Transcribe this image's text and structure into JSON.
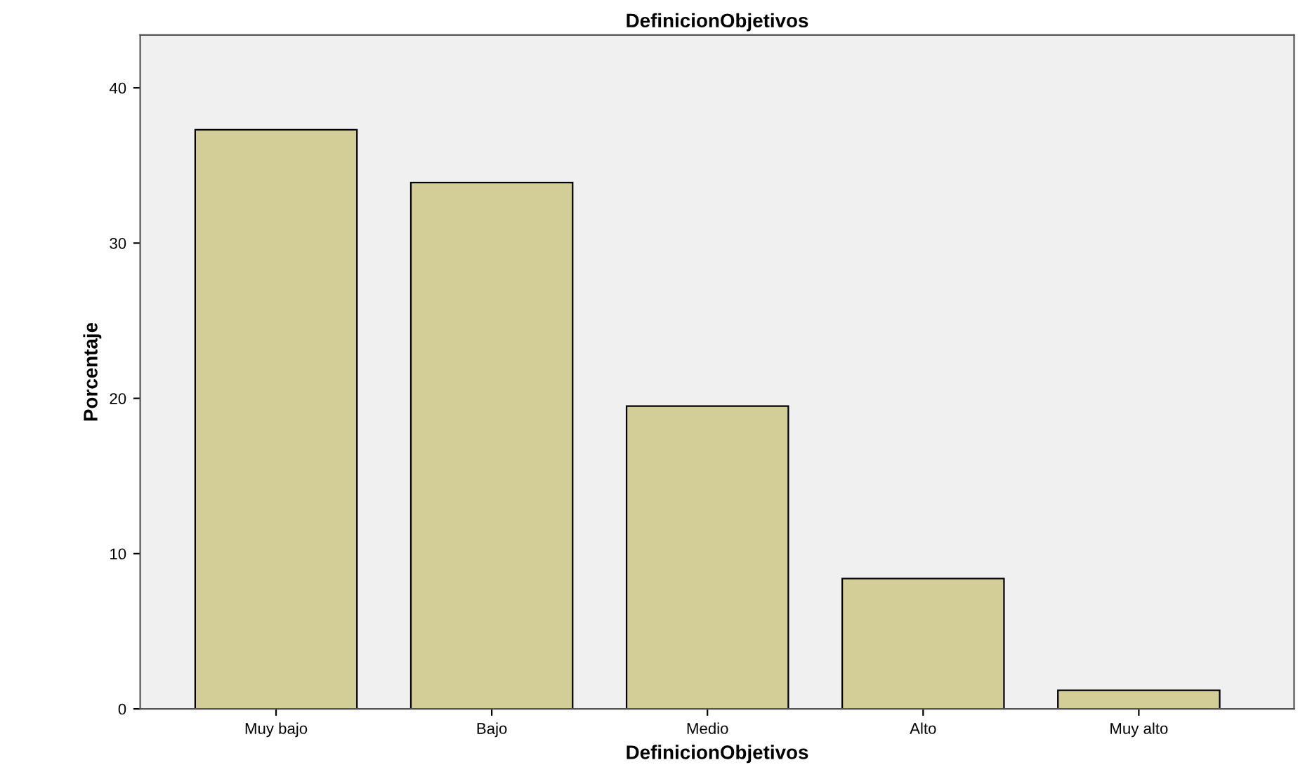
{
  "chart_data": {
    "type": "bar",
    "title": "DefinicionObjetivos",
    "xlabel": "DefinicionObjetivos",
    "ylabel": "Porcentaje",
    "categories": [
      "Muy bajo",
      "Bajo",
      "Medio",
      "Alto",
      "Muy alto"
    ],
    "values": [
      37.3,
      33.9,
      19.5,
      8.4,
      1.2
    ],
    "color": "#d3ce98",
    "ylim": [
      0,
      43.4
    ],
    "yticks": [
      0,
      10,
      20,
      30,
      40
    ],
    "grid": false
  }
}
